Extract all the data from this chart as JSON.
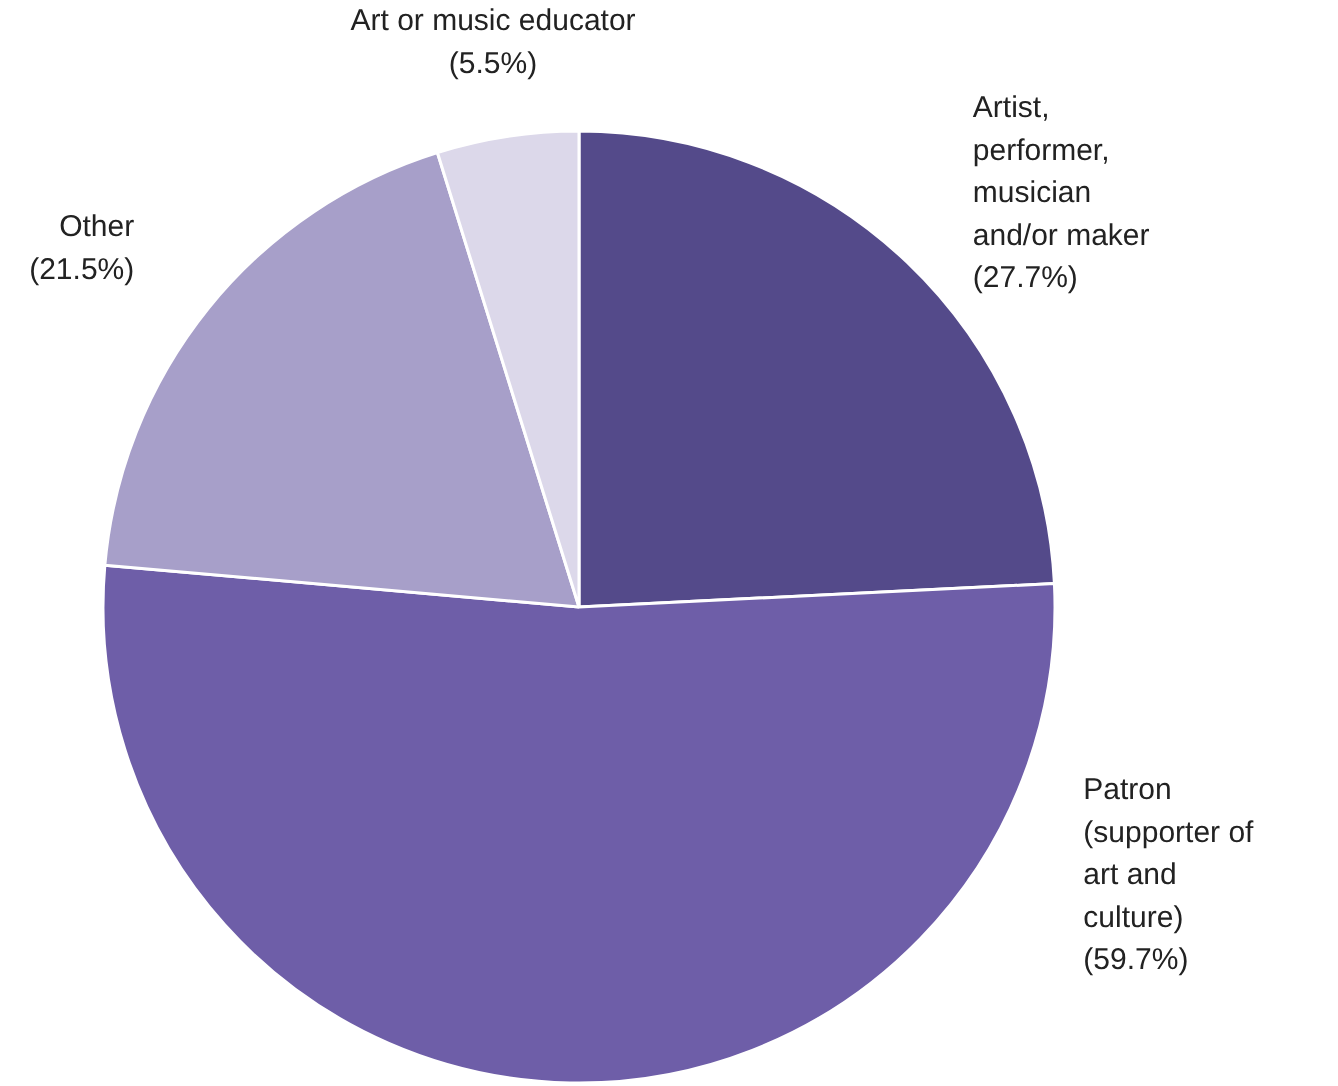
{
  "chart_data": {
    "type": "pie",
    "categories": [
      "Artist, performer, musician and/or maker",
      "Patron (supporter of art and culture)",
      "Other",
      "Art or music educator"
    ],
    "values": [
      27.7,
      59.7,
      21.5,
      5.5
    ],
    "colors": [
      "#544a8a",
      "#6e5ea8",
      "#a79fc9",
      "#dcd8ea"
    ],
    "value_labels": [
      "(27.7%)",
      "(59.7%)",
      "(21.5%)",
      "(5.5%)"
    ]
  }
}
